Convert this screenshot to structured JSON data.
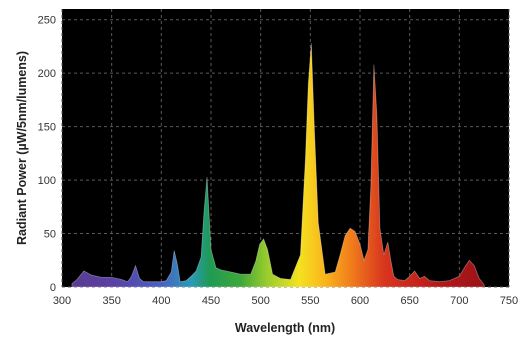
{
  "chart_data": {
    "type": "area",
    "title": "",
    "xlabel": "Wavelength (nm)",
    "ylabel": "Radiant Power (µW/5nm/lumens)",
    "xlim": [
      300,
      750
    ],
    "ylim": [
      0,
      260
    ],
    "x_ticks": [
      300,
      350,
      400,
      450,
      500,
      550,
      600,
      650,
      700,
      750
    ],
    "y_ticks": [
      0,
      50,
      100,
      150,
      200,
      250
    ],
    "x_tick_labels": [
      "300",
      "350",
      "400",
      "450",
      "500",
      "550",
      "600",
      "650",
      "700",
      "750"
    ],
    "y_tick_labels": [
      "0",
      "50",
      "100",
      "150",
      "200",
      "250"
    ],
    "grid": true,
    "legend": "none",
    "plot_background": "#000000",
    "fill": "visible-spectrum gradient by wavelength",
    "series": [
      {
        "x": [
          310,
          315,
          322,
          330,
          340,
          350,
          360,
          366,
          370,
          374,
          378,
          382,
          390,
          400,
          405,
          410,
          413,
          416,
          419,
          425,
          430,
          435,
          440,
          443,
          446,
          450,
          455,
          460,
          470,
          480,
          490,
          495,
          499,
          503,
          507,
          512,
          520,
          530,
          540,
          545,
          548,
          551,
          554,
          558,
          565,
          575,
          580,
          585,
          590,
          595,
          600,
          604,
          608,
          611,
          614,
          617,
          620,
          624,
          628,
          631,
          634,
          638,
          645,
          650,
          655,
          660,
          665,
          670,
          680,
          690,
          700,
          705,
          710,
          715,
          720,
          725
        ],
        "y": [
          3,
          7,
          15,
          11,
          9,
          9,
          7,
          5,
          10,
          20,
          8,
          5,
          5,
          5,
          6,
          14,
          34,
          22,
          5,
          6,
          10,
          15,
          28,
          70,
          103,
          35,
          18,
          16,
          14,
          12,
          12,
          24,
          40,
          45,
          35,
          12,
          8,
          7,
          30,
          120,
          190,
          228,
          150,
          60,
          12,
          14,
          30,
          48,
          55,
          52,
          40,
          25,
          35,
          95,
          208,
          160,
          55,
          30,
          42,
          25,
          10,
          7,
          6,
          10,
          15,
          8,
          10,
          6,
          5,
          6,
          10,
          18,
          25,
          20,
          8,
          2
        ]
      }
    ]
  }
}
